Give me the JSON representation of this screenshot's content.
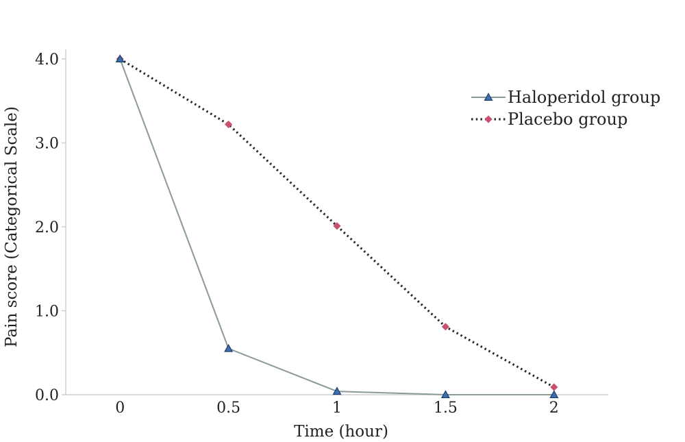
{
  "chart_data": {
    "type": "line",
    "xlabel": "Time (hour)",
    "ylabel": "Pain score (Categorical Scale)",
    "categories": [
      "0",
      "0.5",
      "1",
      "1.5",
      "2"
    ],
    "x": [
      0,
      0.5,
      1,
      1.5,
      2
    ],
    "xlim": [
      -0.25,
      2.25
    ],
    "ylim": [
      0,
      4.0
    ],
    "yticks": [
      "0.0",
      "1.0",
      "2.0",
      "3.0",
      "4.0"
    ],
    "grid": false,
    "legend_position": "top-right",
    "series": [
      {
        "name": "Haloperidol group",
        "values": [
          4.0,
          0.55,
          0.04,
          0.0,
          0.0
        ],
        "line_color": "#8a9a98",
        "line_style": "solid",
        "marker": "triangle",
        "marker_color": "#3f6fb0"
      },
      {
        "name": "Placebo group",
        "values": [
          4.0,
          3.22,
          2.01,
          0.81,
          0.09
        ],
        "line_color": "#2b2b2b",
        "line_style": "dotted",
        "marker": "diamond",
        "marker_color": "#c9506e"
      }
    ]
  }
}
